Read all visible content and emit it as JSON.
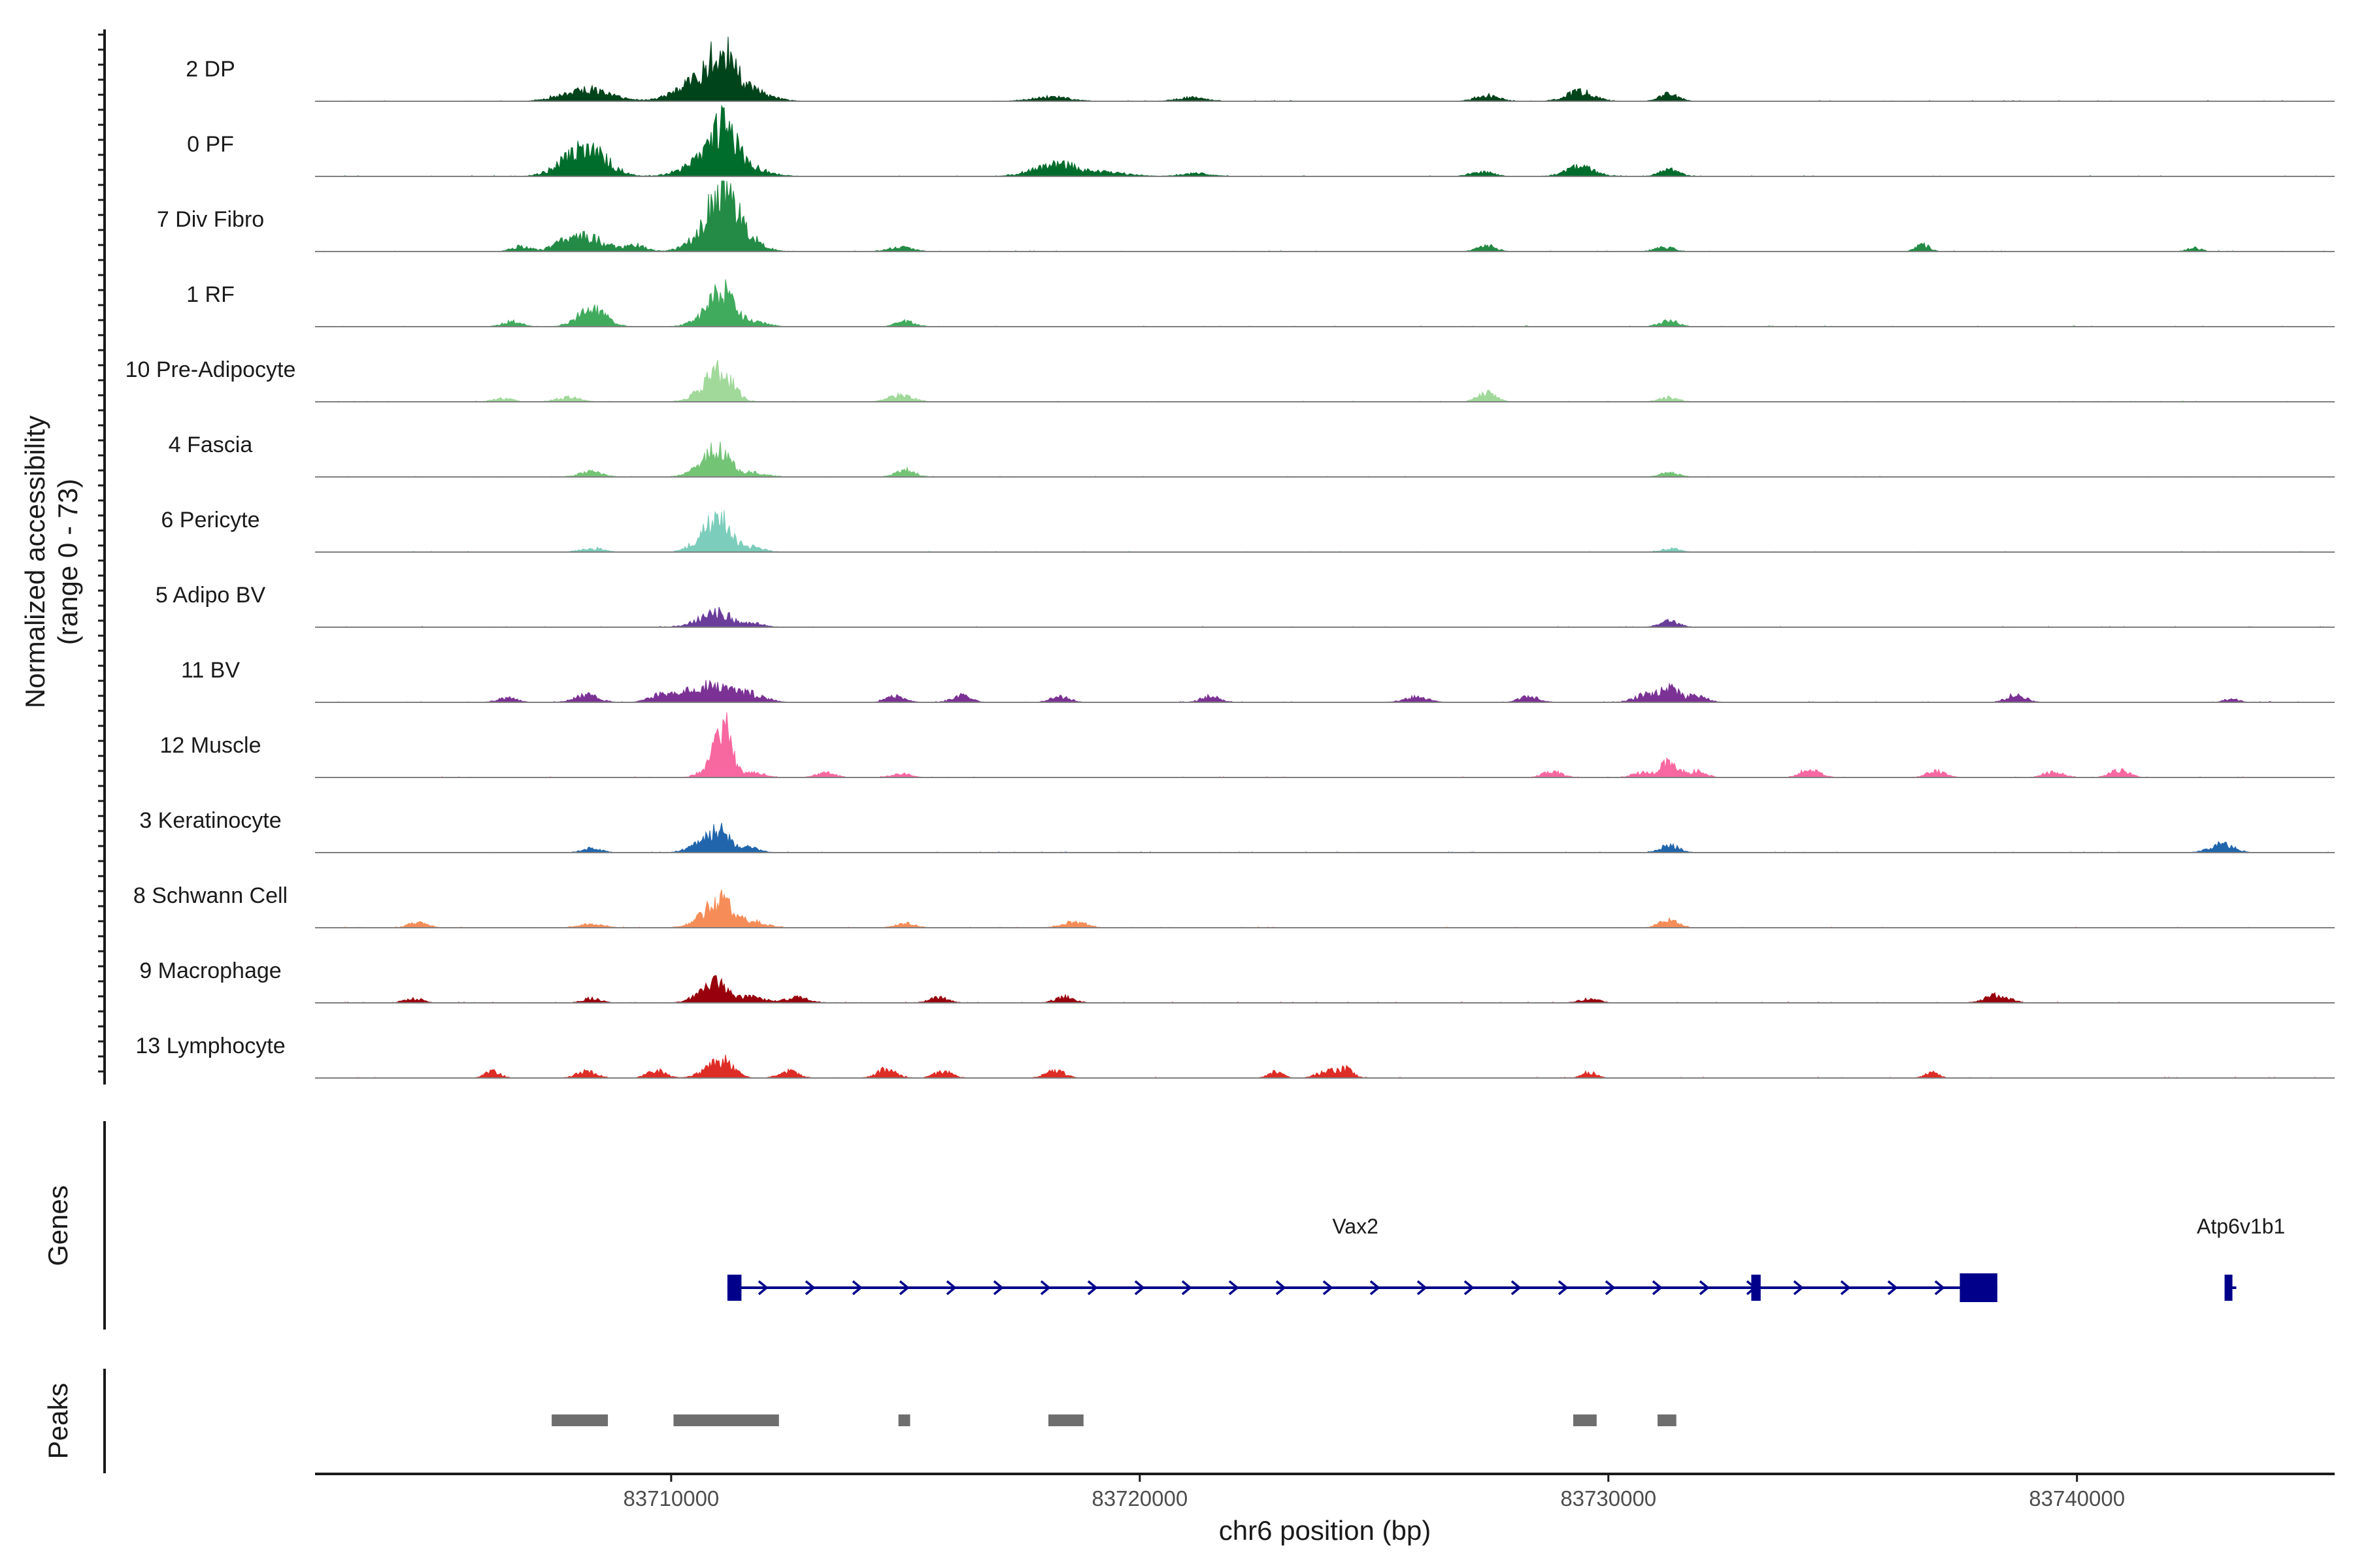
{
  "chart_data": {
    "type": "area",
    "ylabel_line1": "Normalized accessibility",
    "ylabel_line2": "(range 0 - 73)",
    "y_range": [
      0,
      73
    ],
    "xlabel": "chr6 position (bp)",
    "x_range": [
      83702400,
      83745500
    ],
    "x_ticks": [
      83710000,
      83720000,
      83730000,
      83740000
    ],
    "x_tick_labels": [
      "83710000",
      "83720000",
      "83730000",
      "83740000"
    ],
    "genes_label": "Genes",
    "peaks_label": "Peaks",
    "tracks": [
      {
        "name": "2 DP",
        "color": "#00441b",
        "scale": 1.0,
        "peaks": [
          [
            83708200,
            500,
            0.16
          ],
          [
            83710700,
            500,
            0.3
          ],
          [
            83711100,
            260,
            0.45
          ],
          [
            83711700,
            400,
            0.12
          ],
          [
            83718100,
            400,
            0.06
          ],
          [
            83721100,
            300,
            0.05
          ],
          [
            83727400,
            250,
            0.08
          ],
          [
            83729400,
            300,
            0.13
          ],
          [
            83731300,
            200,
            0.1
          ]
        ]
      },
      {
        "name": "0 PF",
        "color": "#006d2c",
        "scale": 1.0,
        "peaks": [
          [
            83707900,
            400,
            0.15
          ],
          [
            83708300,
            400,
            0.28
          ],
          [
            83710600,
            400,
            0.16
          ],
          [
            83711100,
            280,
            0.62
          ],
          [
            83711700,
            400,
            0.1
          ],
          [
            83718200,
            450,
            0.17
          ],
          [
            83719300,
            500,
            0.05
          ],
          [
            83721200,
            300,
            0.04
          ],
          [
            83727300,
            250,
            0.06
          ],
          [
            83729400,
            300,
            0.13
          ],
          [
            83731300,
            200,
            0.1
          ]
        ]
      },
      {
        "name": "7 Div Fibro",
        "color": "#238b45",
        "scale": 1.0,
        "peaks": [
          [
            83706800,
            200,
            0.07
          ],
          [
            83707600,
            200,
            0.08
          ],
          [
            83708200,
            350,
            0.2
          ],
          [
            83709200,
            250,
            0.08
          ],
          [
            83710600,
            300,
            0.16
          ],
          [
            83711100,
            250,
            0.93
          ],
          [
            83711600,
            300,
            0.2
          ],
          [
            83714900,
            250,
            0.06
          ],
          [
            83727400,
            200,
            0.08
          ],
          [
            83731200,
            200,
            0.06
          ],
          [
            83736700,
            150,
            0.09
          ],
          [
            83742500,
            150,
            0.05
          ]
        ]
      },
      {
        "name": "1 RF",
        "color": "#41ab5d",
        "scale": 1.0,
        "peaks": [
          [
            83706600,
            200,
            0.07
          ],
          [
            83708300,
            300,
            0.24
          ],
          [
            83710800,
            300,
            0.14
          ],
          [
            83711100,
            220,
            0.42
          ],
          [
            83711700,
            300,
            0.08
          ],
          [
            83715000,
            200,
            0.07
          ],
          [
            83731300,
            200,
            0.08
          ]
        ]
      },
      {
        "name": "10 Pre-Adipocyte",
        "color": "#a1d99b",
        "scale": 1.0,
        "peaks": [
          [
            83706400,
            200,
            0.05
          ],
          [
            83707800,
            250,
            0.06
          ],
          [
            83710800,
            300,
            0.17
          ],
          [
            83711100,
            250,
            0.3
          ],
          [
            83714900,
            250,
            0.09
          ],
          [
            83727400,
            200,
            0.12
          ],
          [
            83731300,
            200,
            0.06
          ]
        ]
      },
      {
        "name": "4 Fascia",
        "color": "#74c476",
        "scale": 1.0,
        "peaks": [
          [
            83708300,
            250,
            0.07
          ],
          [
            83710700,
            300,
            0.12
          ],
          [
            83711000,
            220,
            0.36
          ],
          [
            83711700,
            300,
            0.06
          ],
          [
            83715000,
            200,
            0.1
          ],
          [
            83731300,
            200,
            0.06
          ]
        ]
      },
      {
        "name": "6 Pericyte",
        "color": "#7ccdbb",
        "scale": 1.0,
        "peaks": [
          [
            83708300,
            250,
            0.05
          ],
          [
            83710800,
            300,
            0.22
          ],
          [
            83711050,
            220,
            0.36
          ],
          [
            83711700,
            250,
            0.07
          ],
          [
            83731300,
            200,
            0.05
          ]
        ]
      },
      {
        "name": "5 Adipo BV",
        "color": "#6a3d9a",
        "scale": 1.0,
        "peaks": [
          [
            83710700,
            300,
            0.1
          ],
          [
            83711100,
            250,
            0.15
          ],
          [
            83711800,
            200,
            0.05
          ],
          [
            83731300,
            200,
            0.08
          ]
        ]
      },
      {
        "name": "11 BV",
        "color": "#7b3294",
        "scale": 1.0,
        "peaks": [
          [
            83706500,
            200,
            0.06
          ],
          [
            83708200,
            250,
            0.1
          ],
          [
            83709800,
            250,
            0.1
          ],
          [
            83710500,
            300,
            0.14
          ],
          [
            83711000,
            300,
            0.2
          ],
          [
            83711700,
            300,
            0.11
          ],
          [
            83714800,
            200,
            0.08
          ],
          [
            83716200,
            200,
            0.09
          ],
          [
            83718300,
            200,
            0.08
          ],
          [
            83721500,
            200,
            0.08
          ],
          [
            83725900,
            250,
            0.07
          ],
          [
            83728300,
            200,
            0.08
          ],
          [
            83730800,
            250,
            0.1
          ],
          [
            83731300,
            200,
            0.2
          ],
          [
            83731900,
            200,
            0.1
          ],
          [
            83738700,
            200,
            0.1
          ],
          [
            83743300,
            150,
            0.05
          ]
        ]
      },
      {
        "name": "12 Muscle",
        "color": "#f768a1",
        "scale": 1.0,
        "peaks": [
          [
            83711000,
            250,
            0.3
          ],
          [
            83711150,
            150,
            0.43
          ],
          [
            83711800,
            200,
            0.06
          ],
          [
            83713300,
            200,
            0.06
          ],
          [
            83714900,
            200,
            0.05
          ],
          [
            83728800,
            200,
            0.08
          ],
          [
            83730700,
            200,
            0.06
          ],
          [
            83731300,
            200,
            0.2
          ],
          [
            83731900,
            200,
            0.08
          ],
          [
            83734300,
            200,
            0.11
          ],
          [
            83737000,
            200,
            0.09
          ],
          [
            83739500,
            200,
            0.08
          ],
          [
            83740900,
            200,
            0.1
          ]
        ]
      },
      {
        "name": "3 Keratinocyte",
        "color": "#2166ac",
        "scale": 1.0,
        "peaks": [
          [
            83708300,
            200,
            0.06
          ],
          [
            83710700,
            300,
            0.12
          ],
          [
            83711050,
            220,
            0.24
          ],
          [
            83711700,
            200,
            0.06
          ],
          [
            83731300,
            200,
            0.1
          ],
          [
            83743100,
            250,
            0.12
          ]
        ]
      },
      {
        "name": "8 Schwann Cell",
        "color": "#f68d59",
        "scale": 1.0,
        "peaks": [
          [
            83704600,
            200,
            0.07
          ],
          [
            83708300,
            250,
            0.05
          ],
          [
            83710800,
            300,
            0.15
          ],
          [
            83711100,
            250,
            0.27
          ],
          [
            83711700,
            300,
            0.09
          ],
          [
            83715000,
            200,
            0.06
          ],
          [
            83718600,
            250,
            0.08
          ],
          [
            83731300,
            200,
            0.1
          ]
        ]
      },
      {
        "name": "9 Macrophage",
        "color": "#99000d",
        "scale": 1.0,
        "peaks": [
          [
            83704500,
            200,
            0.06
          ],
          [
            83708300,
            200,
            0.06
          ],
          [
            83710700,
            250,
            0.12
          ],
          [
            83711000,
            220,
            0.2
          ],
          [
            83711700,
            300,
            0.08
          ],
          [
            83712700,
            250,
            0.07
          ],
          [
            83715700,
            200,
            0.07
          ],
          [
            83718400,
            200,
            0.08
          ],
          [
            83729600,
            200,
            0.06
          ],
          [
            83738300,
            250,
            0.11
          ]
        ]
      },
      {
        "name": "13 Lymphocyte",
        "color": "#de2d26",
        "scale": 1.0,
        "peaks": [
          [
            83706200,
            150,
            0.1
          ],
          [
            83708200,
            200,
            0.1
          ],
          [
            83709700,
            200,
            0.1
          ],
          [
            83710900,
            250,
            0.16
          ],
          [
            83711200,
            200,
            0.14
          ],
          [
            83712500,
            200,
            0.09
          ],
          [
            83714600,
            200,
            0.12
          ],
          [
            83715800,
            200,
            0.08
          ],
          [
            83718200,
            200,
            0.1
          ],
          [
            83722900,
            150,
            0.08
          ],
          [
            83724000,
            200,
            0.1
          ],
          [
            83724400,
            150,
            0.12
          ],
          [
            83729600,
            150,
            0.08
          ],
          [
            83736900,
            150,
            0.07
          ]
        ]
      }
    ],
    "genes": [
      {
        "name": "Vax2",
        "start": 83711200,
        "end": 83738300,
        "strand": "+",
        "exons": [
          [
            83711200,
            83711500
          ],
          [
            83733050,
            83733250
          ],
          [
            83737500,
            83738300
          ]
        ],
        "label_x": 83724600
      },
      {
        "name": "Atp6v1b1",
        "start": 83743150,
        "end": 83743400,
        "strand": "+",
        "exons": [
          [
            83743150,
            83743300
          ]
        ],
        "label_x": 83743500
      }
    ],
    "peaks": [
      [
        83707450,
        83708650
      ],
      [
        83710050,
        83712300
      ],
      [
        83714850,
        83715100
      ],
      [
        83718050,
        83718800
      ],
      [
        83729250,
        83729750
      ],
      [
        83731050,
        83731450
      ]
    ]
  },
  "colors": {
    "gene": "#00008b",
    "peak": "#6e6e6e",
    "baseline": "#7f7f7f",
    "axis": "#1a1a1a"
  }
}
